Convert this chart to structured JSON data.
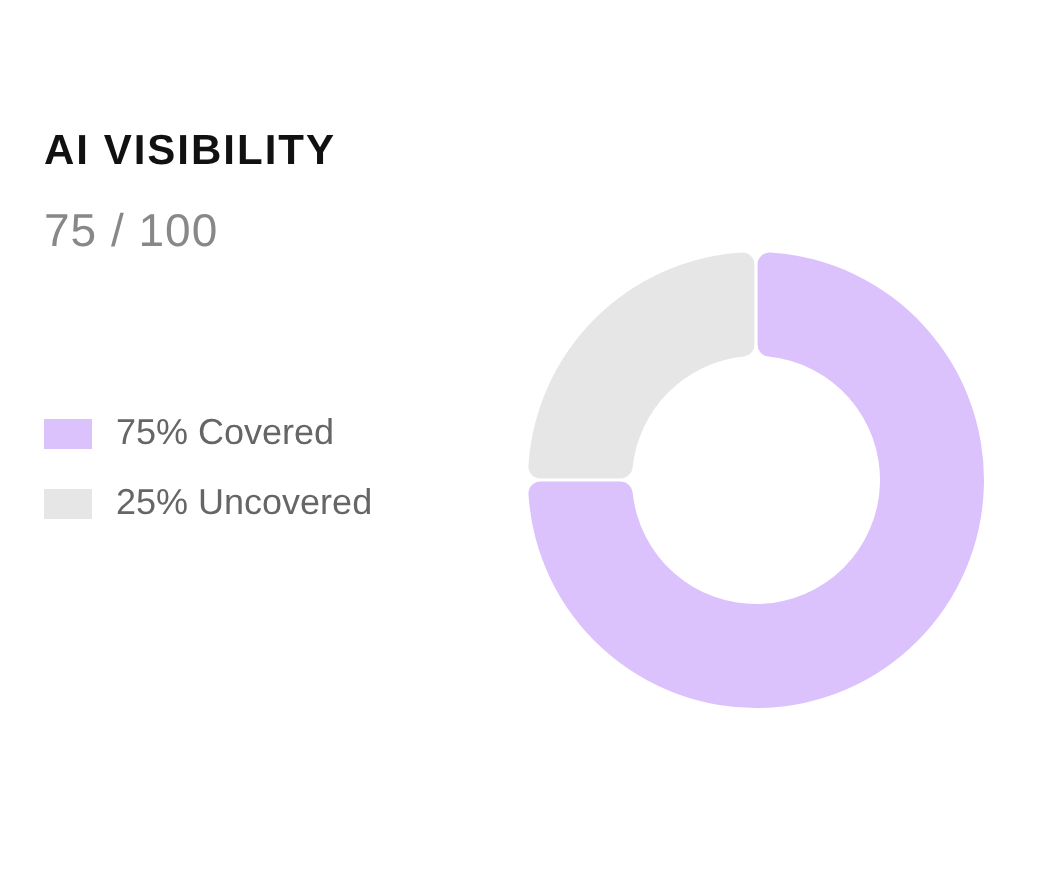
{
  "chart_data": {
    "type": "donut",
    "title": "AI VISIBILITY",
    "subtitle": "75 / 100",
    "categories": [
      "Covered",
      "Uncovered"
    ],
    "values": [
      75,
      25
    ],
    "value_labels": [
      "75%",
      "25%"
    ],
    "colors": [
      "#dcc2fc",
      "#e6e6e6"
    ],
    "legend": "left"
  }
}
